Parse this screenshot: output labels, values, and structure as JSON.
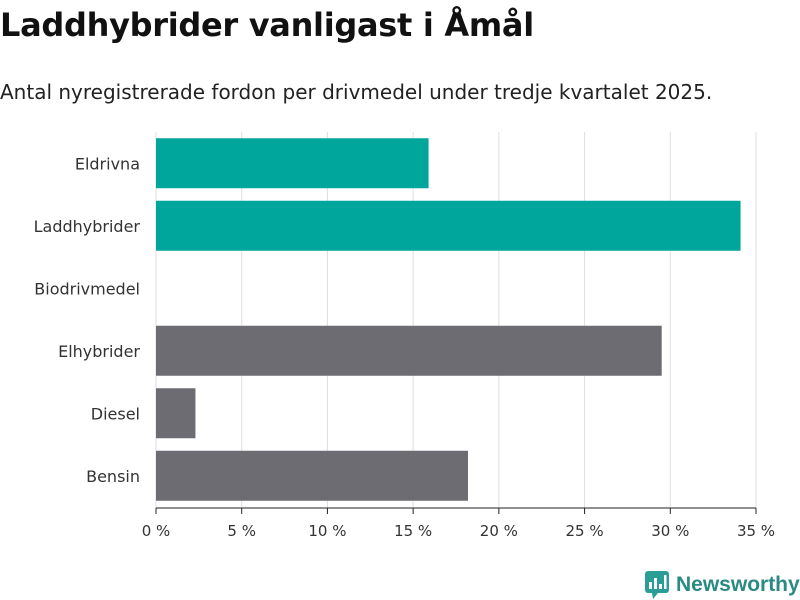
{
  "header": {
    "title": "Laddhybrider vanligast i Åmål",
    "subtitle": "Antal nyregistrerade fordon per drivmedel under tredje kvartalet 2025."
  },
  "brand": {
    "name": "Newsworthy",
    "color": "#2a9d96"
  },
  "colors": {
    "highlight": "#00a69c",
    "default": "#6d6c73"
  },
  "chart_data": {
    "type": "bar",
    "orientation": "horizontal",
    "title": "Laddhybrider vanligast i Åmål",
    "subtitle": "Antal nyregistrerade fordon per drivmedel under tredje kvartalet 2025.",
    "xlabel": "",
    "ylabel": "",
    "categories": [
      "Eldrivna",
      "Laddhybrider",
      "Biodrivmedel",
      "Elhybrider",
      "Diesel",
      "Bensin"
    ],
    "values": [
      15.9,
      34.1,
      0,
      29.5,
      2.3,
      18.2
    ],
    "highlighted": [
      true,
      true,
      false,
      false,
      false,
      false
    ],
    "xlim": [
      0,
      35
    ],
    "xticks": [
      0,
      5,
      10,
      15,
      20,
      25,
      30,
      35
    ],
    "tick_suffix": " %",
    "grid": true,
    "legend": "none"
  }
}
